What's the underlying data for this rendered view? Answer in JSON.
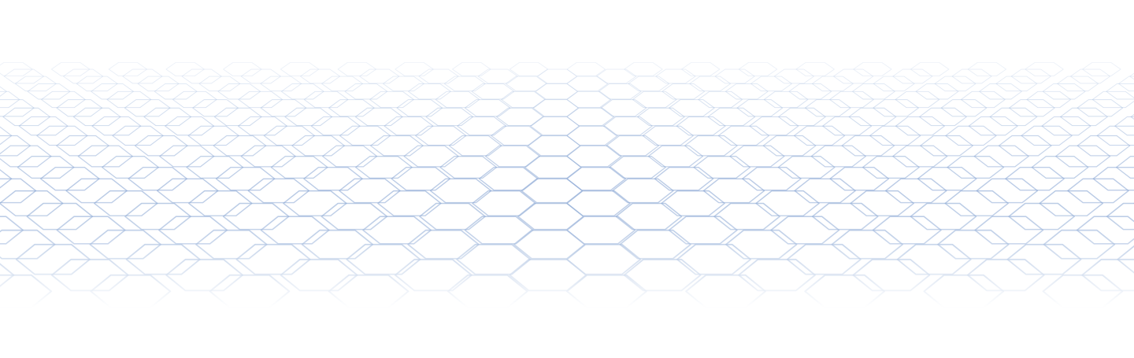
{
  "background": {
    "base_color": "#ffffff",
    "pattern": "hexagon-grid",
    "pattern_color": "#7f9fd0",
    "perspective": "receding-floor"
  }
}
